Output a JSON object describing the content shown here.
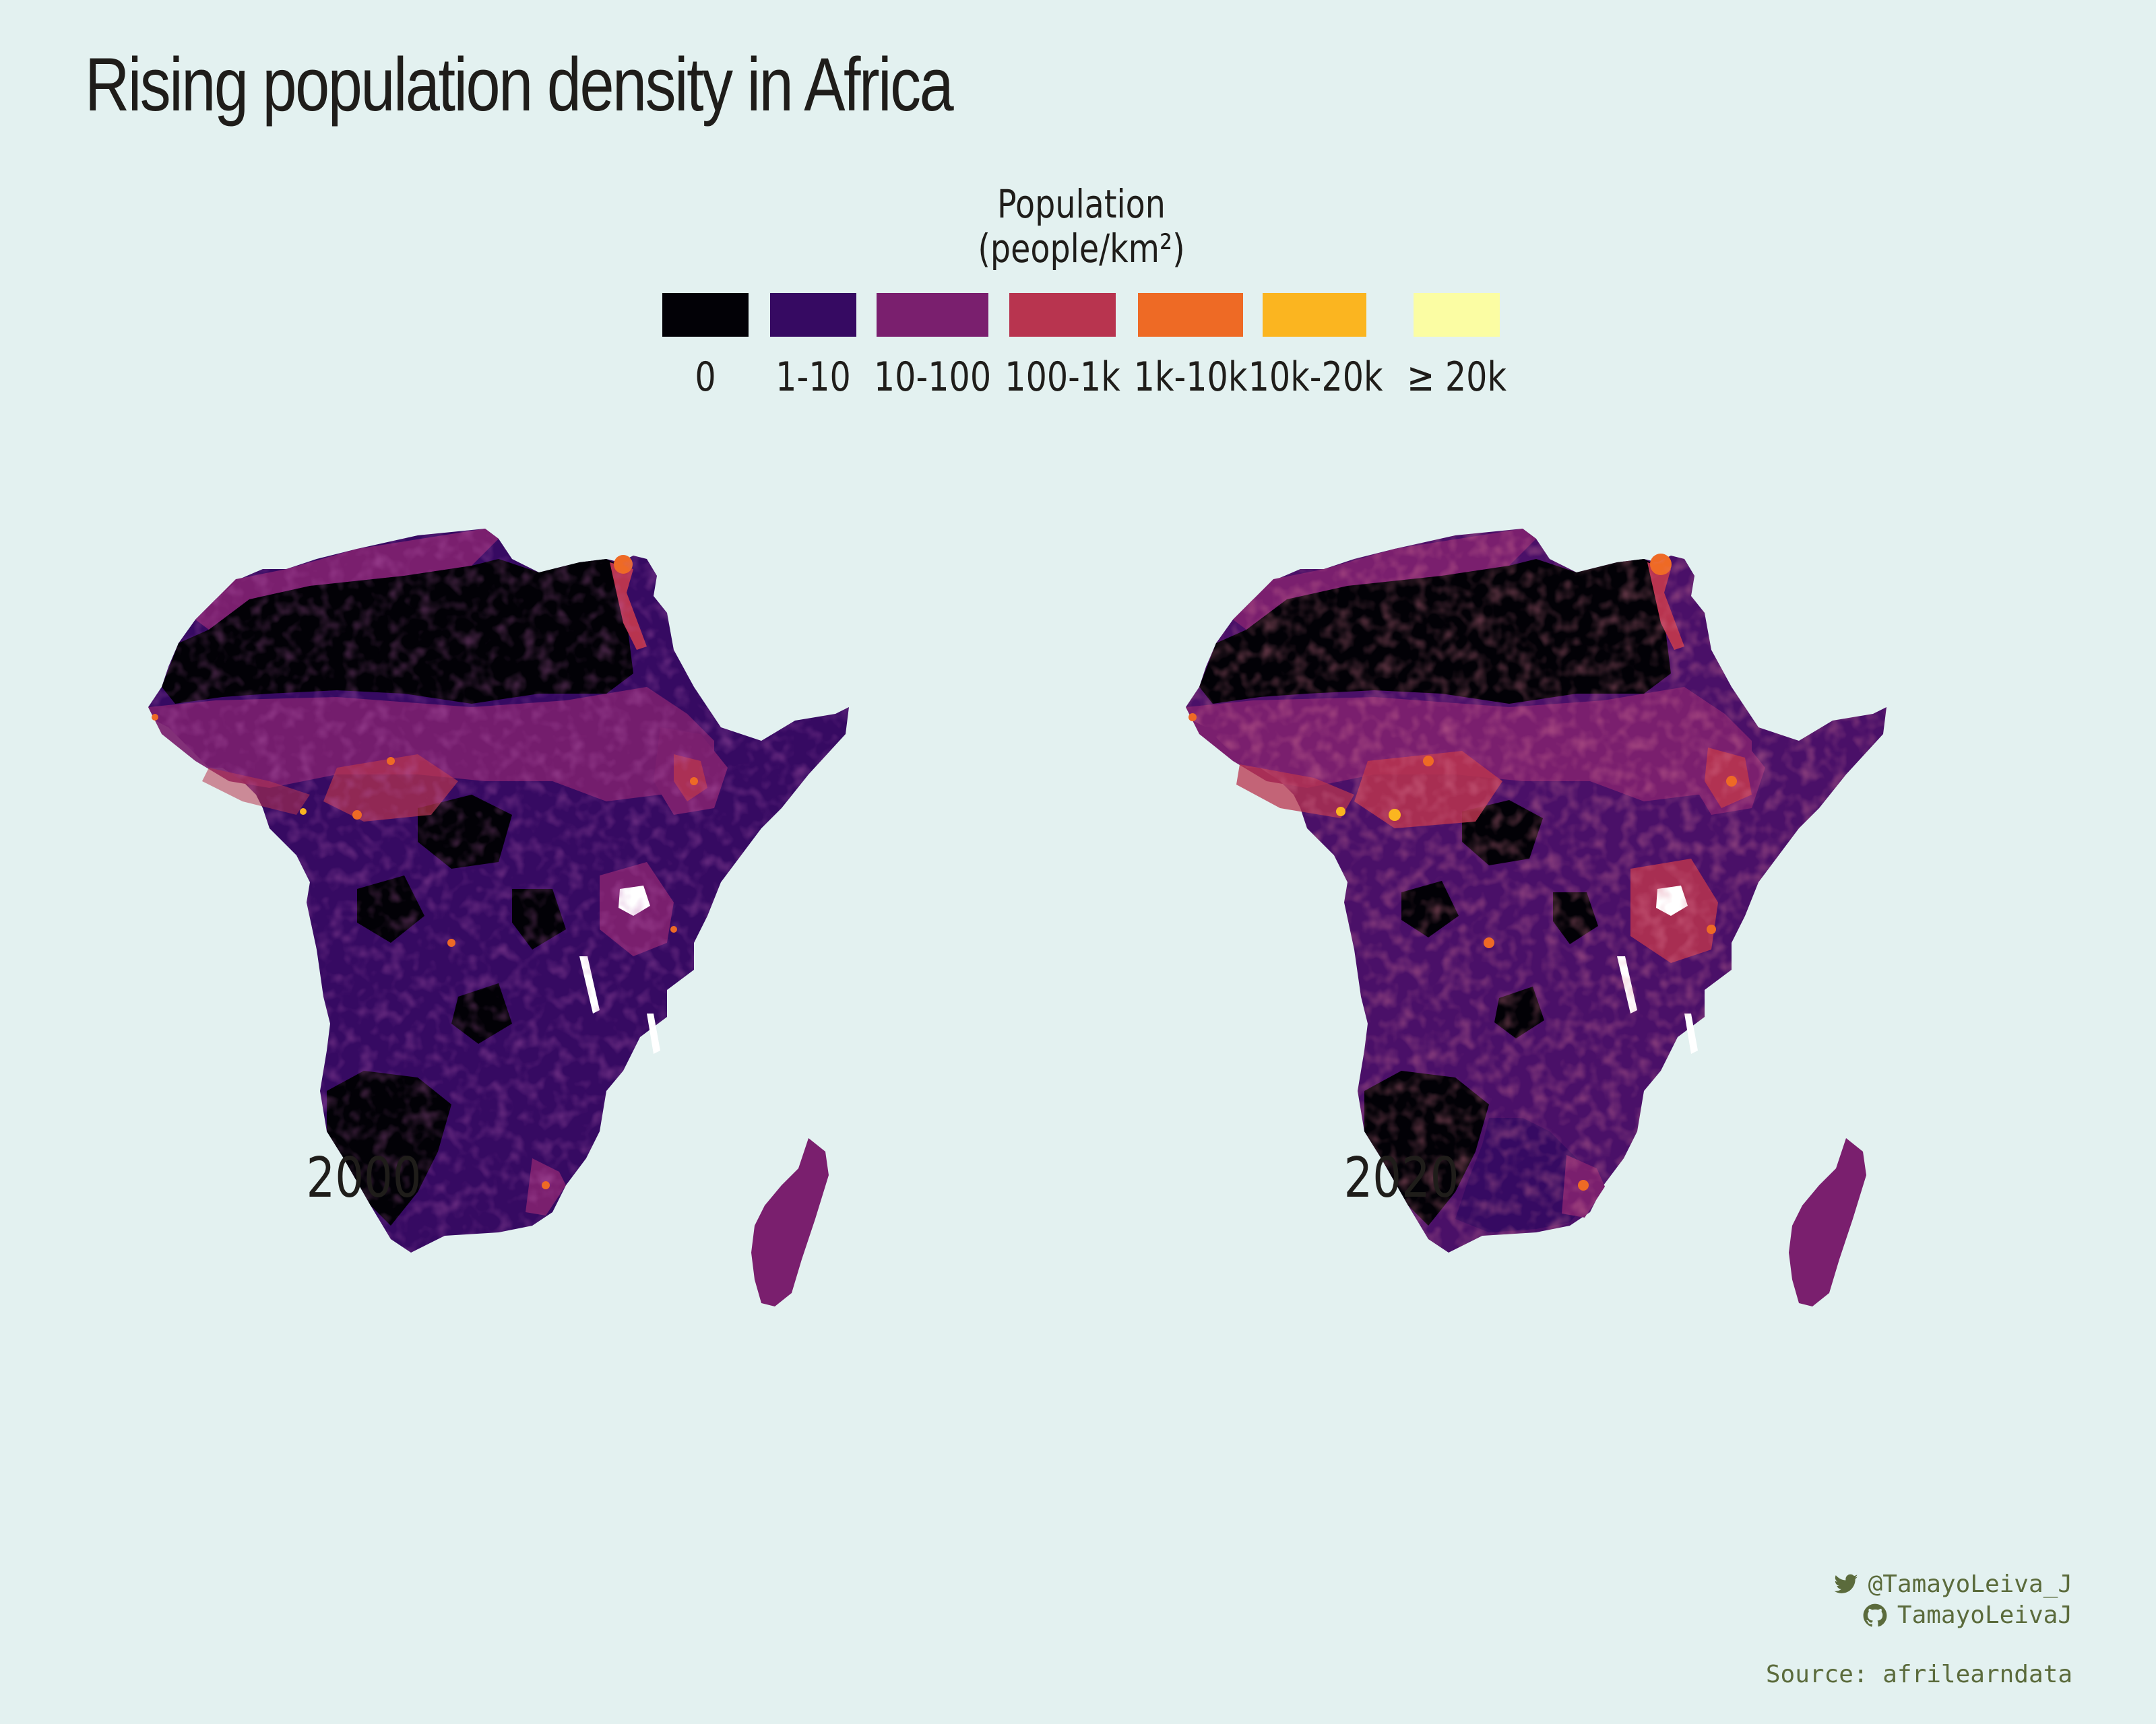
{
  "title": "Rising population density in Africa",
  "legend": {
    "title_line1": "Population",
    "title_line2": "(people/km²)",
    "bins": [
      {
        "label": "0",
        "color": "#020106"
      },
      {
        "label": "1-10",
        "color": "#360a62"
      },
      {
        "label": "10-100",
        "color": "#7a1f6e"
      },
      {
        "label": "100-1k",
        "color": "#b8344f"
      },
      {
        "label": "1k-10k",
        "color": "#ee6a25"
      },
      {
        "label": "10k-20k",
        "color": "#fbb520"
      },
      {
        "label": "≥ 20k",
        "color": "#fbfda3"
      }
    ]
  },
  "maps": [
    {
      "year": "2000"
    },
    {
      "year": "2020"
    }
  ],
  "credits": {
    "twitter": "@TamayoLeiva_J",
    "github": "TamayoLeivaJ",
    "source": "Source: afrilearndata"
  },
  "colors": {
    "background": "#e3f1f0",
    "text": "#1f1d1a",
    "credits": "#5b6b3c"
  }
}
